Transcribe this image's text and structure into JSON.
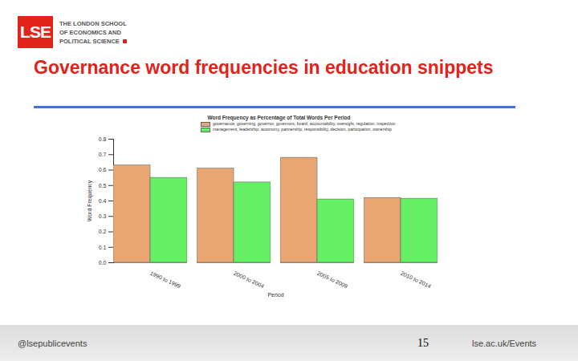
{
  "slide": {
    "logo": "LSE",
    "logo_text": [
      "THE LONDON SCHOOL",
      "OF ECONOMICS AND",
      "POLITICAL SCIENCE"
    ],
    "heading": "Governance word frequencies in education snippets",
    "footer_left": "@lsepublicevents",
    "page_number": "15",
    "footer_right": "lse.ac.uk/Events"
  },
  "chart_data": {
    "type": "bar",
    "title": "Word Frequency as Percentage of Total Words Per Period",
    "x_label": "Period",
    "y_label": "Word Frequency",
    "categories": [
      "1990 to 1999",
      "2000 to 2004",
      "2005 to 2009",
      "2010 to 2014"
    ],
    "series": [
      {
        "name": "governance, governing, governor, governors, board, accountability, oversight, regulation, inspection",
        "color": "#e8a673",
        "values": [
          0.63,
          0.61,
          0.68,
          0.42
        ]
      },
      {
        "name": "management, leadership, autonomy, partnership, responsibility, decision, participation, ownership",
        "color": "#66f066",
        "values": [
          0.55,
          0.52,
          0.41,
          0.415
        ]
      }
    ],
    "ylim": [
      0,
      0.8
    ],
    "yticks": [
      {
        "value": 0,
        "label": "0.0"
      },
      0.1,
      0.2,
      0.3,
      0.4,
      0.5,
      0.6,
      0.7,
      0.8
    ],
    "grid": false,
    "legend": "top"
  }
}
